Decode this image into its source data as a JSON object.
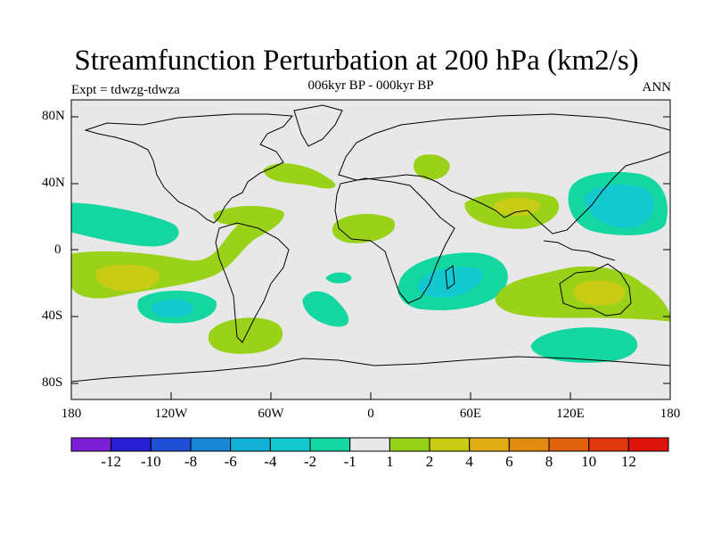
{
  "title": "Streamfunction Perturbation at 200 hPa (km2/s)",
  "subtitle": "006kyr BP - 000kyr BP",
  "left_label": "Expt = tdwzg-tdwza",
  "right_label": "ANN",
  "lat_labels": [
    "80N",
    "40N",
    "0",
    "40S",
    "80S"
  ],
  "lon_labels": [
    "180",
    "120W",
    "60W",
    "0",
    "60E",
    "120E",
    "180"
  ],
  "colorbar": {
    "colors": [
      "#7b1fd6",
      "#2a1fd6",
      "#1f4fd6",
      "#1a86d6",
      "#12b0d6",
      "#14c8d0",
      "#14d6a0",
      "#e8e8e8",
      "#9ad21a",
      "#c8cc14",
      "#e0ad14",
      "#e08a12",
      "#e0620e",
      "#e0380e",
      "#e0140e"
    ],
    "labels": [
      "-12",
      "-10",
      "-8",
      "-6",
      "-4",
      "-2",
      "-1",
      "1",
      "2",
      "4",
      "6",
      "8",
      "10",
      "12"
    ]
  }
}
